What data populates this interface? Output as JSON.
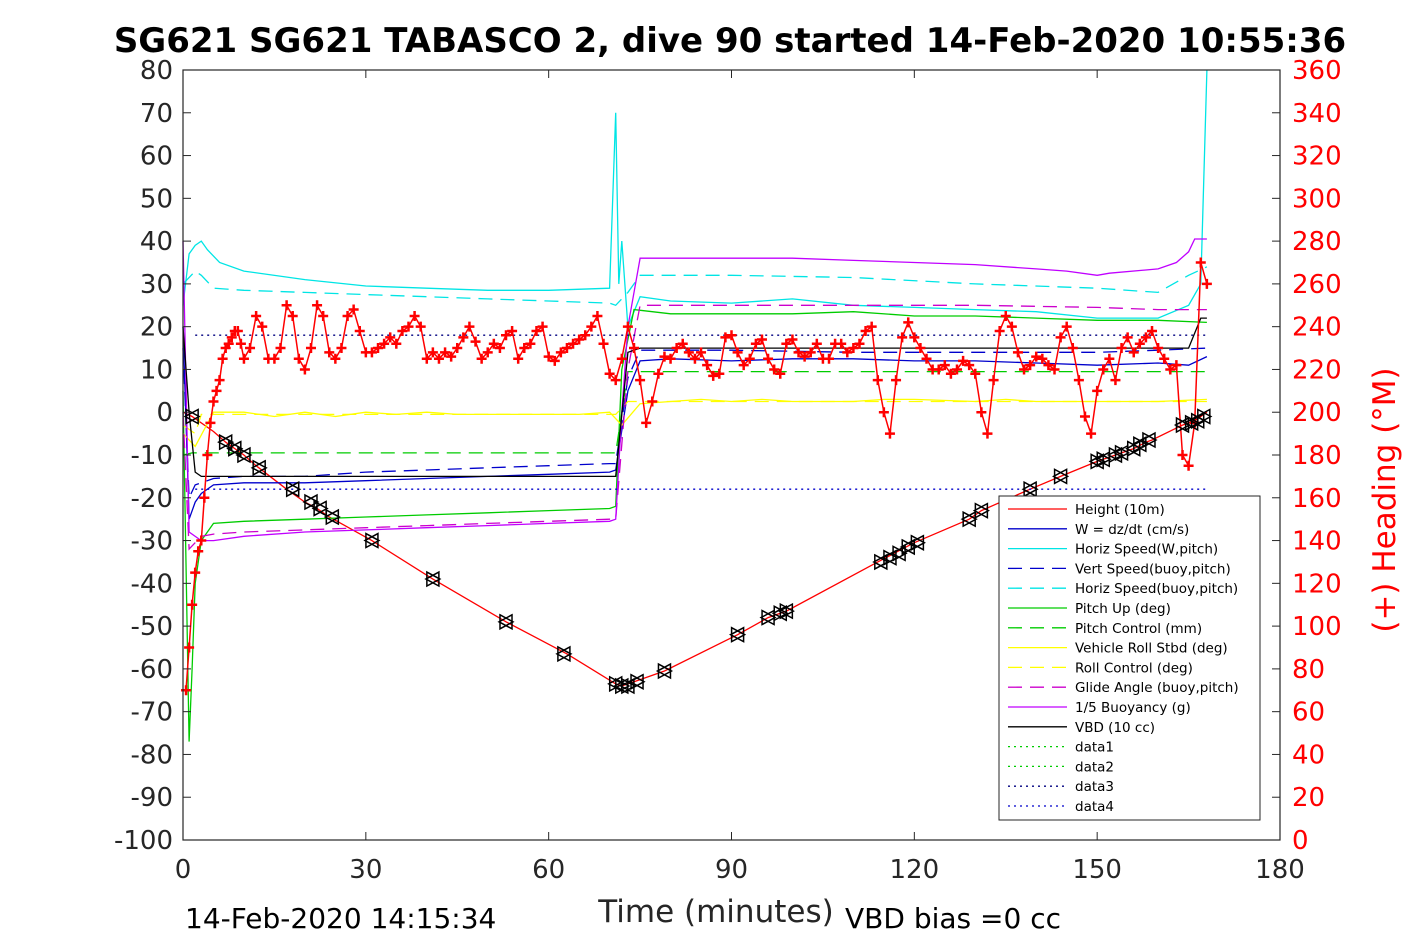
{
  "chart_data": {
    "type": "line",
    "title": "SG621 SG621 TABASCO 2, dive 90 started 14-Feb-2020 10:55:36",
    "xlabel": "Time (minutes)",
    "ylabel": "",
    "ylabel_right": "(+) Heading (°M)",
    "xlim": [
      0,
      180
    ],
    "ylim": [
      -100,
      80
    ],
    "ylim_right": [
      0,
      360
    ],
    "xticks": [
      "0",
      "30",
      "60",
      "90",
      "120",
      "150",
      "180"
    ],
    "yticks": [
      "80",
      "70",
      "60",
      "50",
      "40",
      "30",
      "20",
      "10",
      "0",
      "-10",
      "-20",
      "-30",
      "-40",
      "-50",
      "-60",
      "-70",
      "-80",
      "-90",
      "-100"
    ],
    "yticks_right": [
      "360",
      "340",
      "320",
      "300",
      "280",
      "260",
      "240",
      "220",
      "200",
      "180",
      "160",
      "140",
      "120",
      "100",
      "80",
      "60",
      "40",
      "20",
      "0"
    ],
    "grid": false,
    "legend_position": "bottom-right",
    "footer_left": "14-Feb-2020 14:15:34",
    "footer_right": "VBD bias =0 cc",
    "colors": {
      "red": "#ff0000",
      "blue": "#0000cc",
      "cyan": "#00e5e5",
      "green": "#00cc00",
      "yellow": "#ffff00",
      "magenta": "#cc00cc",
      "violet": "#c000ff",
      "black": "#000000",
      "darkblue": "#000080"
    },
    "series": [
      {
        "name": "Height (10m)",
        "color": "#ff0000",
        "style": "solid",
        "x": [
          0,
          1.5,
          5,
          7,
          8.5,
          10,
          12,
          17,
          20,
          22,
          24,
          31,
          41,
          53,
          63,
          71,
          72,
          73,
          75,
          79,
          91,
          96,
          98,
          99,
          114,
          116,
          118,
          120,
          129,
          131,
          139,
          144,
          150,
          152,
          154,
          156,
          158,
          159,
          164,
          165,
          166,
          167,
          168
        ],
        "y": [
          0,
          -1,
          -4.5,
          -7,
          -8.5,
          -10,
          -12.5,
          -18,
          -21,
          -22.5,
          -24.5,
          -30,
          -39,
          -49,
          -56.5,
          -63.5,
          -64,
          -63.5,
          -62.5,
          -60.5,
          -52,
          -48,
          -47,
          -46.5,
          -35,
          -33.5,
          -32,
          -30.5,
          -25,
          -23,
          -18,
          -15,
          -11.5,
          -10.5,
          -9.5,
          -8.5,
          -7,
          -6.5,
          -3,
          -2.5,
          -2,
          -1,
          0
        ]
      },
      {
        "name": "W = dz/dt (cm/s)",
        "color": "#0000cc",
        "style": "solid",
        "x": [
          0,
          1,
          2,
          3,
          5,
          10,
          20,
          30,
          40,
          50,
          60,
          70,
          71,
          73,
          75,
          80,
          90,
          100,
          110,
          120,
          130,
          140,
          150,
          160,
          165,
          168
        ],
        "y": [
          20,
          -25,
          -21,
          -19,
          -17,
          -16.5,
          -16.5,
          -16,
          -15.5,
          -15,
          -14.5,
          -14,
          -13.5,
          5,
          12,
          12.5,
          12,
          12.5,
          12.5,
          12,
          12,
          11.5,
          11,
          11.5,
          11,
          13
        ]
      },
      {
        "name": "Horiz Speed(W,pitch)",
        "color": "#00e5e5",
        "style": "solid",
        "x": [
          0,
          1,
          2,
          3,
          4,
          6,
          10,
          20,
          30,
          40,
          50,
          60,
          70,
          71,
          71.5,
          72,
          73,
          75,
          80,
          90,
          100,
          110,
          120,
          130,
          140,
          150,
          160,
          165,
          167,
          168
        ],
        "y": [
          25,
          37,
          39,
          40,
          38,
          35,
          33,
          31,
          29.5,
          29,
          28.5,
          28.5,
          29,
          70,
          30,
          40,
          20,
          27,
          26,
          25.5,
          26.5,
          25,
          24.5,
          24,
          23.5,
          22,
          22,
          25,
          30,
          80
        ]
      },
      {
        "name": "Vert Speed(buoy,pitch)",
        "color": "#0000cc",
        "style": "dashed",
        "x": [
          0,
          1,
          2,
          5,
          10,
          20,
          30,
          40,
          50,
          60,
          70,
          71,
          73,
          75,
          90,
          110,
          130,
          150,
          160,
          168
        ],
        "y": [
          15,
          -20,
          -17,
          -15.5,
          -15,
          -15,
          -14,
          -13.5,
          -13,
          -12.5,
          -12,
          -12,
          8,
          14.5,
          14.5,
          14,
          14,
          14,
          14.5,
          15
        ]
      },
      {
        "name": "Horiz Speed(buoy,pitch)",
        "color": "#00e5e5",
        "style": "dashed",
        "x": [
          0,
          2,
          3,
          5,
          10,
          20,
          30,
          40,
          50,
          60,
          70,
          71,
          73,
          75,
          90,
          110,
          130,
          150,
          160,
          165,
          168
        ],
        "y": [
          30,
          33,
          32,
          29,
          28.5,
          28,
          27.5,
          27,
          26.5,
          26,
          25.5,
          25,
          28,
          32,
          32,
          31.5,
          30,
          29,
          28,
          32,
          34
        ]
      },
      {
        "name": "Pitch Up (deg)",
        "color": "#00cc00",
        "style": "solid",
        "x": [
          0,
          1,
          1.5,
          2,
          3,
          5,
          10,
          20,
          30,
          40,
          50,
          60,
          70,
          71,
          72,
          74,
          80,
          90,
          100,
          110,
          120,
          130,
          140,
          150,
          160,
          168
        ],
        "y": [
          5,
          -77,
          -60,
          -40,
          -30,
          -26,
          -25.5,
          -25,
          -24.5,
          -24,
          -23.5,
          -23,
          -22.5,
          -22,
          10,
          24,
          23,
          23,
          23,
          23.5,
          22.5,
          22.5,
          22,
          21.5,
          21.5,
          21
        ]
      },
      {
        "name": "Pitch Control (mm)",
        "color": "#00cc00",
        "style": "dashed",
        "x": [
          0,
          1.5,
          3,
          70,
          71,
          73,
          75,
          168
        ],
        "y": [
          -10,
          -9.5,
          -9.5,
          -9.5,
          -9.5,
          9.5,
          9.5,
          9.5
        ]
      },
      {
        "name": "Vehicle Roll Stbd (deg)",
        "color": "#ffff00",
        "style": "solid",
        "x": [
          0,
          2,
          5,
          10,
          15,
          20,
          25,
          30,
          35,
          40,
          45,
          50,
          55,
          60,
          65,
          70,
          72,
          75,
          80,
          85,
          90,
          95,
          100,
          110,
          115,
          120,
          130,
          135,
          140,
          150,
          160,
          168
        ],
        "y": [
          -5,
          -8,
          0,
          0,
          -1,
          0,
          -1,
          0,
          -0.5,
          0,
          -0.5,
          -0.5,
          -0.5,
          -0.5,
          -0.5,
          0,
          -3,
          2,
          2.5,
          3,
          2.5,
          3,
          2.5,
          2.5,
          3,
          3,
          2.5,
          3,
          2.5,
          2.5,
          2.5,
          3
        ]
      },
      {
        "name": "Roll Control (deg)",
        "color": "#ffff00",
        "style": "dashed",
        "x": [
          0,
          2,
          3,
          70,
          71,
          73,
          75,
          168
        ],
        "y": [
          -3,
          -5,
          -0.5,
          -0.5,
          -0.5,
          2.5,
          2.5,
          2.5
        ]
      },
      {
        "name": "Glide Angle (buoy,pitch)",
        "color": "#cc00cc",
        "style": "dashed",
        "x": [
          0,
          1,
          3,
          5,
          10,
          20,
          30,
          40,
          50,
          60,
          70,
          71,
          73,
          75,
          90,
          110,
          130,
          150,
          160,
          168
        ],
        "y": [
          0,
          -32,
          -29,
          -28.5,
          -28,
          -27.5,
          -27,
          -26.5,
          -26,
          -25.5,
          -25,
          -25,
          10,
          25,
          25,
          25,
          25,
          24.5,
          24,
          24
        ]
      },
      {
        "name": "1/5 Buoyancy (g)",
        "color": "#c000ff",
        "style": "solid",
        "x": [
          0,
          1,
          3,
          5,
          10,
          20,
          30,
          40,
          50,
          60,
          70,
          71,
          72,
          73,
          75,
          80,
          90,
          100,
          110,
          120,
          130,
          140,
          145,
          150,
          152,
          160,
          163,
          165,
          166,
          168
        ],
        "y": [
          40,
          -28,
          -30,
          -30,
          -29,
          -28,
          -27.5,
          -27,
          -26.5,
          -26,
          -25.5,
          -25,
          0,
          20,
          36,
          36,
          36,
          36,
          35.5,
          35,
          34.5,
          33.5,
          33,
          32,
          32.5,
          33.5,
          35,
          37.5,
          40.5,
          40.5
        ]
      },
      {
        "name": "VBD (10 cc)",
        "color": "#000000",
        "style": "solid",
        "x": [
          0,
          1,
          2,
          3,
          70,
          71,
          73,
          75,
          150,
          155,
          160,
          165,
          167,
          168
        ],
        "y": [
          20,
          0,
          -14,
          -15,
          -15,
          -15,
          14,
          15,
          15,
          15,
          15,
          15,
          22,
          22
        ]
      },
      {
        "name": "data1",
        "color": "#00cc00",
        "style": "dotted",
        "x": [],
        "y": []
      },
      {
        "name": "data2",
        "color": "#00cc00",
        "style": "dotted",
        "x": [],
        "y": []
      },
      {
        "name": "data3",
        "color": "#000080",
        "style": "dotted",
        "x": [
          2,
          168
        ],
        "y": [
          18,
          18
        ]
      },
      {
        "name": "data4",
        "color": "#0000cc",
        "style": "dotted",
        "x": [
          2,
          168
        ],
        "y": [
          -18,
          -18
        ]
      }
    ],
    "heading_series": {
      "color": "#ff0000",
      "marker": "+",
      "axis": "right",
      "x": [
        0.5,
        1,
        1.5,
        2,
        2.5,
        3,
        3.5,
        4,
        4.5,
        5,
        5.5,
        6,
        6.5,
        7,
        7.5,
        8,
        8.5,
        9,
        9.5,
        10,
        11,
        12,
        13,
        14,
        15,
        16,
        17,
        18,
        19,
        20,
        21,
        22,
        23,
        24,
        25,
        26,
        27,
        28,
        29,
        30,
        31,
        32,
        33,
        34,
        35,
        36,
        37,
        38,
        39,
        40,
        41,
        42,
        43,
        44,
        45,
        46,
        47,
        48,
        49,
        50,
        51,
        52,
        53,
        54,
        55,
        56,
        57,
        58,
        59,
        60,
        61,
        62,
        63,
        64,
        65,
        66,
        67,
        68,
        69,
        70,
        71,
        72,
        73,
        74,
        75,
        76,
        77,
        78,
        79,
        80,
        81,
        82,
        83,
        84,
        85,
        86,
        87,
        88,
        89,
        90,
        91,
        92,
        93,
        94,
        95,
        96,
        97,
        98,
        99,
        100,
        101,
        102,
        103,
        104,
        105,
        106,
        107,
        108,
        109,
        110,
        111,
        112,
        113,
        114,
        115,
        116,
        117,
        118,
        119,
        120,
        121,
        122,
        123,
        124,
        125,
        126,
        127,
        128,
        129,
        130,
        131,
        132,
        133,
        134,
        135,
        136,
        137,
        138,
        139,
        140,
        141,
        142,
        143,
        144,
        145,
        146,
        147,
        148,
        149,
        150,
        151,
        152,
        153,
        154,
        155,
        156,
        157,
        158,
        159,
        160,
        161,
        162,
        163,
        164,
        165,
        166,
        167,
        168
      ],
      "y": [
        70,
        90,
        110,
        125,
        135,
        140,
        160,
        180,
        195,
        205,
        210,
        215,
        225,
        230,
        232,
        235,
        238,
        238,
        232,
        225,
        230,
        245,
        240,
        225,
        225,
        230,
        250,
        245,
        225,
        220,
        230,
        250,
        245,
        228,
        225,
        230,
        245,
        248,
        238,
        228,
        228,
        230,
        232,
        235,
        232,
        238,
        240,
        245,
        240,
        225,
        228,
        225,
        228,
        226,
        230,
        235,
        240,
        233,
        225,
        228,
        232,
        230,
        236,
        238,
        225,
        230,
        232,
        238,
        240,
        226,
        224,
        228,
        230,
        232,
        234,
        236,
        240,
        245,
        232,
        218,
        215,
        225,
        240,
        230,
        215,
        195,
        205,
        218,
        226,
        225,
        230,
        232,
        228,
        225,
        228,
        222,
        217,
        218,
        235,
        236,
        228,
        222,
        225,
        232,
        234,
        225,
        220,
        218,
        232,
        234,
        228,
        226,
        228,
        232,
        225,
        225,
        232,
        232,
        228,
        230,
        232,
        238,
        240,
        215,
        200,
        190,
        215,
        235,
        242,
        235,
        230,
        225,
        220,
        220,
        222,
        218,
        220,
        224,
        222,
        218,
        200,
        190,
        215,
        238,
        245,
        240,
        228,
        220,
        222,
        226,
        225,
        222,
        220,
        235,
        240,
        230,
        215,
        198,
        190,
        210,
        220,
        225,
        215,
        230,
        235,
        228,
        232,
        235,
        238,
        230,
        225,
        220,
        222,
        180,
        175,
        195,
        270,
        260
      ]
    },
    "markers": {
      "color": "#000000",
      "x": [
        1.5,
        7,
        8.5,
        10,
        12.5,
        18,
        21,
        22.5,
        24.5,
        31,
        41,
        53,
        62.5,
        71,
        72,
        73,
        74.5,
        79,
        91,
        96,
        98,
        99,
        114.5,
        116,
        117.5,
        119,
        120.5,
        129,
        131,
        139,
        144,
        150,
        151,
        153,
        154,
        156,
        157,
        158.5,
        164,
        165.5,
        166.5,
        167.5
      ],
      "y": [
        -1,
        -7,
        -8.5,
        -10,
        -13,
        -18,
        -21,
        -22.5,
        -24.5,
        -30,
        -39,
        -49,
        -56.5,
        -63.5,
        -64,
        -64,
        -63,
        -60.5,
        -52,
        -48,
        -47,
        -46.5,
        -35,
        -34,
        -33,
        -31.5,
        -30.5,
        -25,
        -23,
        -18,
        -15,
        -11.5,
        -11,
        -10,
        -9.5,
        -8.5,
        -7.5,
        -6.5,
        -3,
        -2.5,
        -2,
        -1
      ]
    }
  }
}
